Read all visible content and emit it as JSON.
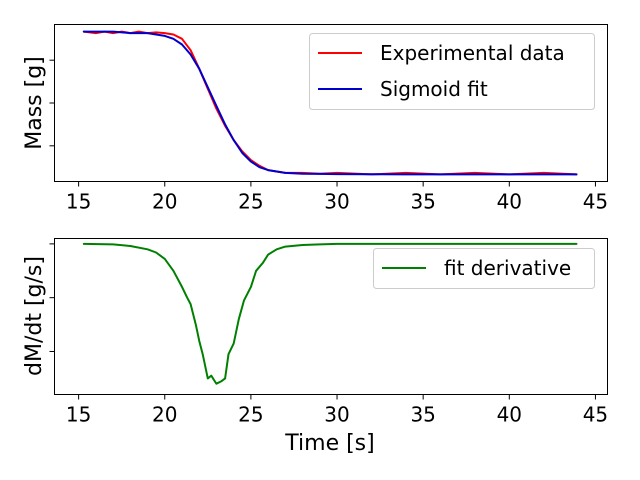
{
  "chart_data": [
    {
      "type": "line",
      "xlabel": "",
      "ylabel": "Mass [g]",
      "xlim": [
        13.6,
        45.7
      ],
      "ylim": [
        -0.05,
        1.05
      ],
      "xticks": [
        15,
        20,
        25,
        30,
        35,
        40,
        45
      ],
      "xtick_labels": [
        "15",
        "20",
        "25",
        "30",
        "35",
        "40",
        "45"
      ],
      "yticks": [
        0.2,
        0.5,
        0.8
      ],
      "ytick_labels": [
        "",
        "",
        ""
      ],
      "legend_position": "top-right",
      "series": [
        {
          "name": "Experimental data",
          "color": "#ff0000",
          "x": [
            15.3,
            16.0,
            16.5,
            17.0,
            17.5,
            18.0,
            18.5,
            19.0,
            19.5,
            20.0,
            20.5,
            21.0,
            21.5,
            22.0,
            22.5,
            23.0,
            23.5,
            24.0,
            24.5,
            25.0,
            25.5,
            26.0,
            26.5,
            27.0,
            28.0,
            29.0,
            30.0,
            32.0,
            34.0,
            36.0,
            38.0,
            40.0,
            42.0,
            43.9
          ],
          "y": [
            1.0,
            0.99,
            1.0,
            0.99,
            1.0,
            0.99,
            1.0,
            0.99,
            0.995,
            0.99,
            0.98,
            0.95,
            0.87,
            0.74,
            0.6,
            0.46,
            0.34,
            0.24,
            0.16,
            0.1,
            0.06,
            0.03,
            0.02,
            0.01,
            0.01,
            0.005,
            0.01,
            0.0,
            0.01,
            0.0,
            0.01,
            0.0,
            0.01,
            0.0
          ]
        },
        {
          "name": "Sigmoid fit",
          "color": "#0000cc",
          "x": [
            15.3,
            16.0,
            17.0,
            18.0,
            19.0,
            19.5,
            20.0,
            20.5,
            21.0,
            21.5,
            22.0,
            22.5,
            23.0,
            23.5,
            24.0,
            24.5,
            25.0,
            25.5,
            26.0,
            26.5,
            27.0,
            28.0,
            29.0,
            30.0,
            32.0,
            34.0,
            36.0,
            38.0,
            40.0,
            42.0,
            43.9
          ],
          "y": [
            1.0,
            1.0,
            1.0,
            0.99,
            0.99,
            0.98,
            0.97,
            0.95,
            0.91,
            0.84,
            0.74,
            0.61,
            0.48,
            0.35,
            0.24,
            0.15,
            0.09,
            0.05,
            0.03,
            0.02,
            0.01,
            0.005,
            0.003,
            0.002,
            0.001,
            0.0,
            0.0,
            0.0,
            0.0,
            0.0,
            0.0
          ]
        }
      ]
    },
    {
      "type": "line",
      "xlabel": "Time [s]",
      "ylabel": "dM/dt [g/s]",
      "xlim": [
        13.6,
        45.7
      ],
      "ylim": [
        -0.28,
        0.01
      ],
      "xticks": [
        15,
        20,
        25,
        30,
        35,
        40,
        45
      ],
      "xtick_labels": [
        "15",
        "20",
        "25",
        "30",
        "35",
        "40",
        "45"
      ],
      "yticks": [
        0.0,
        -0.1,
        -0.2
      ],
      "ytick_labels": [
        "",
        "",
        ""
      ],
      "legend_position": "top-right",
      "series": [
        {
          "name": "fit derivative",
          "color": "#008000",
          "x": [
            15.3,
            17.0,
            18.0,
            19.0,
            19.5,
            20.0,
            20.5,
            21.0,
            21.3,
            21.5,
            21.8,
            22.0,
            22.2,
            22.5,
            22.7,
            22.9,
            23.0,
            23.3,
            23.5,
            23.7,
            24.0,
            24.3,
            24.6,
            25.0,
            25.3,
            25.7,
            26.0,
            26.5,
            27.0,
            28.0,
            29.0,
            30.0,
            33.0,
            36.0,
            40.0,
            43.9
          ],
          "y": [
            0.0,
            -0.001,
            -0.004,
            -0.01,
            -0.016,
            -0.028,
            -0.05,
            -0.08,
            -0.1,
            -0.112,
            -0.15,
            -0.18,
            -0.205,
            -0.25,
            -0.245,
            -0.255,
            -0.26,
            -0.255,
            -0.25,
            -0.205,
            -0.185,
            -0.14,
            -0.105,
            -0.08,
            -0.05,
            -0.035,
            -0.02,
            -0.01,
            -0.005,
            -0.002,
            -0.001,
            0.0,
            0.0,
            0.0,
            0.0,
            0.0
          ]
        }
      ]
    }
  ]
}
